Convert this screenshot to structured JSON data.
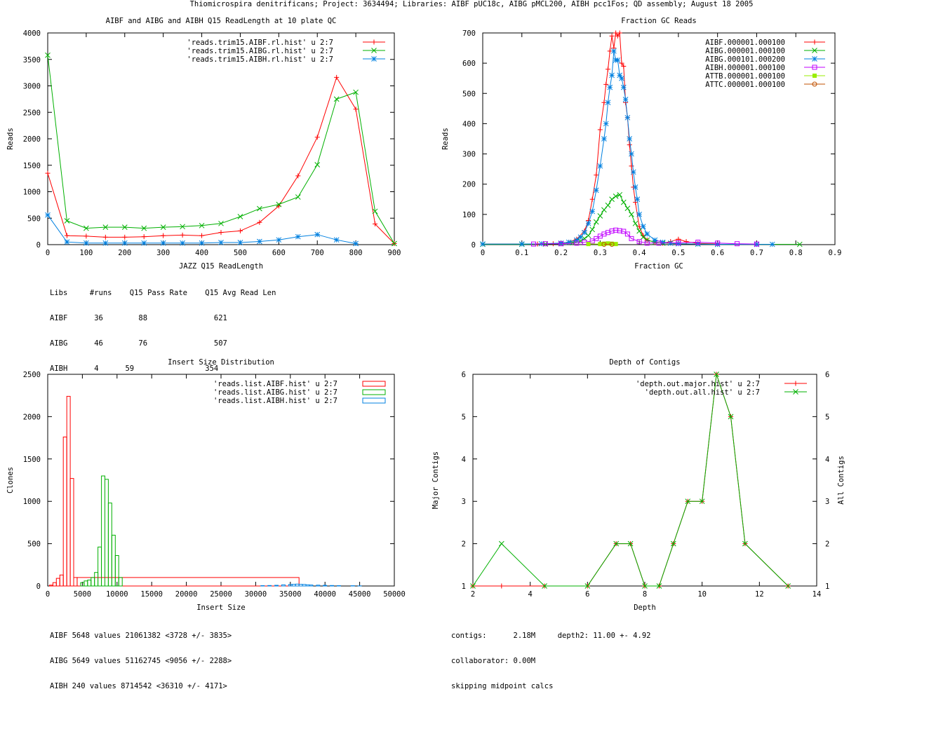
{
  "page_title": "Thiomicrospira denitrificans; Project: 3634494; Libraries: AIBF pUC18c, AIBG pMCL200, AIBH pcc1Fos; QD assembly; August 18 2005",
  "colors": {
    "red": "#ff0000",
    "green": "#00b000",
    "blue": "#0080e0",
    "magenta": "#c000ff",
    "lime": "#99ee00",
    "orange": "#c05000"
  },
  "chart_data": [
    {
      "id": "readlength",
      "type": "line",
      "title": "AIBF and AIBG and AIBH Q15 ReadLength at 10 plate QC",
      "xlabel": "JAZZ Q15 ReadLength",
      "ylabel": "Reads",
      "xlim": [
        0,
        900
      ],
      "ylim": [
        0,
        4000
      ],
      "xticks": [
        0,
        100,
        200,
        300,
        400,
        500,
        600,
        700,
        800,
        900
      ],
      "yticks": [
        0,
        500,
        1000,
        1500,
        2000,
        2500,
        3000,
        3500,
        4000
      ],
      "legend_position": "top-right",
      "series": [
        {
          "name": "'reads.trim15.AIBF.rl.hist' u 2:7",
          "color": "#ff0000",
          "marker": "plus",
          "x": [
            0,
            50,
            100,
            150,
            200,
            250,
            300,
            350,
            400,
            450,
            500,
            550,
            600,
            650,
            700,
            750,
            800,
            850,
            900
          ],
          "y": [
            1350,
            170,
            160,
            140,
            140,
            150,
            170,
            180,
            170,
            230,
            260,
            420,
            730,
            1300,
            2030,
            3160,
            2560,
            390,
            20
          ]
        },
        {
          "name": "'reads.trim15.AIBG.rl.hist' u 2:7",
          "color": "#00b000",
          "marker": "x",
          "x": [
            0,
            50,
            100,
            150,
            200,
            250,
            300,
            350,
            400,
            450,
            500,
            550,
            600,
            650,
            700,
            750,
            800,
            850,
            900
          ],
          "y": [
            3580,
            450,
            310,
            330,
            330,
            310,
            330,
            340,
            360,
            400,
            530,
            680,
            760,
            900,
            1510,
            2750,
            2880,
            630,
            20
          ]
        },
        {
          "name": "'reads.trim15.AIBH.rl.hist' u 2:7",
          "color": "#0080e0",
          "marker": "star",
          "x": [
            0,
            50,
            100,
            150,
            200,
            250,
            300,
            350,
            400,
            450,
            500,
            550,
            600,
            650,
            700,
            750,
            800
          ],
          "y": [
            560,
            50,
            30,
            30,
            30,
            30,
            30,
            30,
            30,
            40,
            40,
            60,
            90,
            150,
            190,
            90,
            20
          ]
        }
      ],
      "info_lines": [
        "Libs     #runs    Q15 Pass Rate    Q15 Avg Read Len",
        "AIBF      36        88               621",
        "AIBG      46        76               507",
        "AIBH      4      59                354"
      ]
    },
    {
      "id": "gc",
      "type": "line",
      "title": "Fraction GC Reads",
      "xlabel": "Fraction GC",
      "ylabel": "Reads",
      "xlim": [
        0,
        0.9
      ],
      "ylim": [
        0,
        700
      ],
      "xticks": [
        0,
        0.1,
        0.2,
        0.3,
        0.4,
        0.5,
        0.6,
        0.7,
        0.8,
        0.9
      ],
      "yticks": [
        0,
        100,
        200,
        300,
        400,
        500,
        600,
        700
      ],
      "legend_position": "top-right",
      "series": [
        {
          "name": "AIBF.000001.000100",
          "color": "#ff0000",
          "marker": "plus",
          "x": [
            0.0,
            0.14,
            0.18,
            0.2,
            0.22,
            0.24,
            0.26,
            0.27,
            0.28,
            0.29,
            0.3,
            0.31,
            0.315,
            0.32,
            0.325,
            0.33,
            0.335,
            0.34,
            0.345,
            0.35,
            0.355,
            0.36,
            0.365,
            0.37,
            0.375,
            0.38,
            0.385,
            0.39,
            0.4,
            0.41,
            0.42,
            0.44,
            0.46,
            0.48,
            0.5,
            0.52,
            0.55,
            0.6
          ],
          "y": [
            2,
            2,
            3,
            5,
            8,
            18,
            45,
            80,
            150,
            230,
            380,
            470,
            530,
            580,
            640,
            690,
            650,
            700,
            690,
            700,
            600,
            590,
            470,
            420,
            330,
            260,
            190,
            140,
            60,
            30,
            15,
            8,
            5,
            10,
            18,
            10,
            4,
            2
          ]
        },
        {
          "name": "AIBG.000001.000100",
          "color": "#00b000",
          "marker": "x",
          "x": [
            0.0,
            0.1,
            0.16,
            0.2,
            0.23,
            0.25,
            0.26,
            0.27,
            0.28,
            0.29,
            0.3,
            0.31,
            0.32,
            0.33,
            0.34,
            0.35,
            0.36,
            0.37,
            0.38,
            0.39,
            0.4,
            0.41,
            0.42,
            0.44,
            0.46,
            0.5,
            0.55,
            0.6,
            0.7,
            0.81
          ],
          "y": [
            1,
            1,
            2,
            3,
            6,
            12,
            20,
            30,
            50,
            75,
            95,
            115,
            130,
            150,
            160,
            165,
            140,
            120,
            100,
            70,
            45,
            25,
            15,
            8,
            5,
            3,
            2,
            1,
            1,
            1
          ]
        },
        {
          "name": "AIBG.000101.000200",
          "color": "#0080e0",
          "marker": "star",
          "x": [
            0.0,
            0.1,
            0.15,
            0.2,
            0.22,
            0.24,
            0.25,
            0.26,
            0.27,
            0.28,
            0.29,
            0.3,
            0.31,
            0.315,
            0.32,
            0.325,
            0.33,
            0.335,
            0.34,
            0.345,
            0.35,
            0.355,
            0.36,
            0.365,
            0.37,
            0.375,
            0.38,
            0.385,
            0.39,
            0.395,
            0.4,
            0.41,
            0.42,
            0.44,
            0.46,
            0.48,
            0.5,
            0.55,
            0.6,
            0.7,
            0.74
          ],
          "y": [
            2,
            2,
            3,
            5,
            8,
            15,
            25,
            40,
            70,
            110,
            180,
            260,
            350,
            400,
            470,
            520,
            560,
            640,
            610,
            610,
            560,
            550,
            520,
            480,
            420,
            350,
            300,
            240,
            190,
            150,
            100,
            60,
            35,
            15,
            8,
            5,
            3,
            2,
            1,
            1,
            1
          ]
        },
        {
          "name": "AIBH.000001.000100",
          "color": "#c000ff",
          "marker": "square",
          "x": [
            0.13,
            0.16,
            0.2,
            0.24,
            0.26,
            0.28,
            0.29,
            0.3,
            0.31,
            0.32,
            0.33,
            0.34,
            0.35,
            0.36,
            0.37,
            0.38,
            0.4,
            0.42,
            0.45,
            0.5,
            0.55,
            0.6,
            0.65,
            0.7
          ],
          "y": [
            2,
            3,
            3,
            5,
            8,
            12,
            20,
            28,
            35,
            40,
            45,
            48,
            46,
            44,
            35,
            20,
            10,
            5,
            5,
            6,
            8,
            5,
            3,
            2
          ]
        },
        {
          "name": "ATTB.000001.000100",
          "color": "#99ee00",
          "marker": "filled-square",
          "x": [
            0.27,
            0.3,
            0.31,
            0.32,
            0.33,
            0.34
          ],
          "y": [
            2,
            2,
            3,
            4,
            3,
            2
          ]
        },
        {
          "name": "ATTC.000001.000100",
          "color": "#c05000",
          "marker": "circle",
          "x": [
            0.31,
            0.33
          ],
          "y": [
            1,
            1
          ]
        }
      ]
    },
    {
      "id": "insert",
      "type": "bar",
      "title": "Insert Size Distribution",
      "xlabel": "Insert Size",
      "ylabel": "Clones",
      "xlim": [
        0,
        50000
      ],
      "ylim": [
        0,
        2500
      ],
      "xticks": [
        0,
        5000,
        10000,
        15000,
        20000,
        25000,
        30000,
        35000,
        40000,
        45000,
        50000
      ],
      "yticks": [
        0,
        500,
        1000,
        1500,
        2000,
        2500
      ],
      "bin_width": 500,
      "legend_position": "top-right",
      "series": [
        {
          "name": "'reads.list.AIBF.hist' u 2:7",
          "color": "#ff0000",
          "x": [
            500,
            1000,
            1500,
            2000,
            2500,
            3000,
            3500,
            4000,
            36000
          ],
          "y": [
            10,
            40,
            90,
            130,
            1760,
            2240,
            1270,
            100,
            100
          ]
        },
        {
          "name": "'reads.list.AIBG.hist' u 2:7",
          "color": "#00b000",
          "x": [
            5000,
            5500,
            6000,
            6500,
            7000,
            7500,
            8000,
            8500,
            9000,
            9500,
            10000,
            10500
          ],
          "y": [
            40,
            60,
            70,
            100,
            160,
            460,
            1300,
            1260,
            980,
            600,
            360,
            100
          ]
        },
        {
          "name": "'reads.list.AIBH.hist' u 2:7",
          "color": "#0080e0",
          "x": [
            31000,
            32000,
            33000,
            34000,
            35000,
            35500,
            36000,
            36500,
            37000,
            37500,
            38000,
            39000,
            40000,
            41000,
            42000,
            44000,
            45000
          ],
          "y": [
            4,
            6,
            8,
            14,
            18,
            20,
            22,
            20,
            18,
            14,
            12,
            10,
            8,
            6,
            4,
            3,
            2
          ]
        }
      ],
      "info_lines": [
        "AIBF 5648 values 21061382 <3728 +/- 3835>",
        "AIBG 5649 values 51162745 <9056 +/- 2288>",
        "AIBH 240 values 8714542 <36310 +/- 4171>"
      ]
    },
    {
      "id": "depth",
      "type": "line",
      "title": "Depth of Contigs",
      "xlabel": "Depth",
      "ylabel": "Major Contigs",
      "y2label": "All Contigs",
      "xlim": [
        2,
        14
      ],
      "ylim": [
        1,
        6
      ],
      "xticks": [
        2,
        4,
        6,
        8,
        10,
        12,
        14
      ],
      "yticks": [
        1,
        2,
        3,
        4,
        5,
        6
      ],
      "legend_position": "top-right",
      "series": [
        {
          "name": "'depth.out.major.hist' u 2:7",
          "color": "#ff0000",
          "marker": "plus",
          "x": [
            2,
            3,
            4.5,
            6,
            7,
            7.5,
            8,
            8.5,
            9,
            9.5,
            10,
            10.5,
            11,
            11.5,
            13
          ],
          "y": [
            1,
            1,
            1,
            1,
            2,
            2,
            1,
            1,
            2,
            3,
            3,
            6,
            5,
            2,
            1
          ]
        },
        {
          "name": "'depth.out.all.hist' u 2:7",
          "color": "#00b000",
          "marker": "x",
          "x": [
            2,
            3,
            4.5,
            6,
            7,
            7.5,
            8,
            8.5,
            9,
            9.5,
            10,
            10.5,
            11,
            11.5,
            13
          ],
          "y": [
            1,
            2,
            1,
            1,
            2,
            2,
            1,
            1,
            2,
            3,
            3,
            6,
            5,
            2,
            1
          ]
        }
      ],
      "info_lines": [
        "contigs:      2.18M     depth2: 11.00 +- 4.92",
        "collaborator: 0.00M",
        "skipping midpoint calcs"
      ]
    }
  ]
}
